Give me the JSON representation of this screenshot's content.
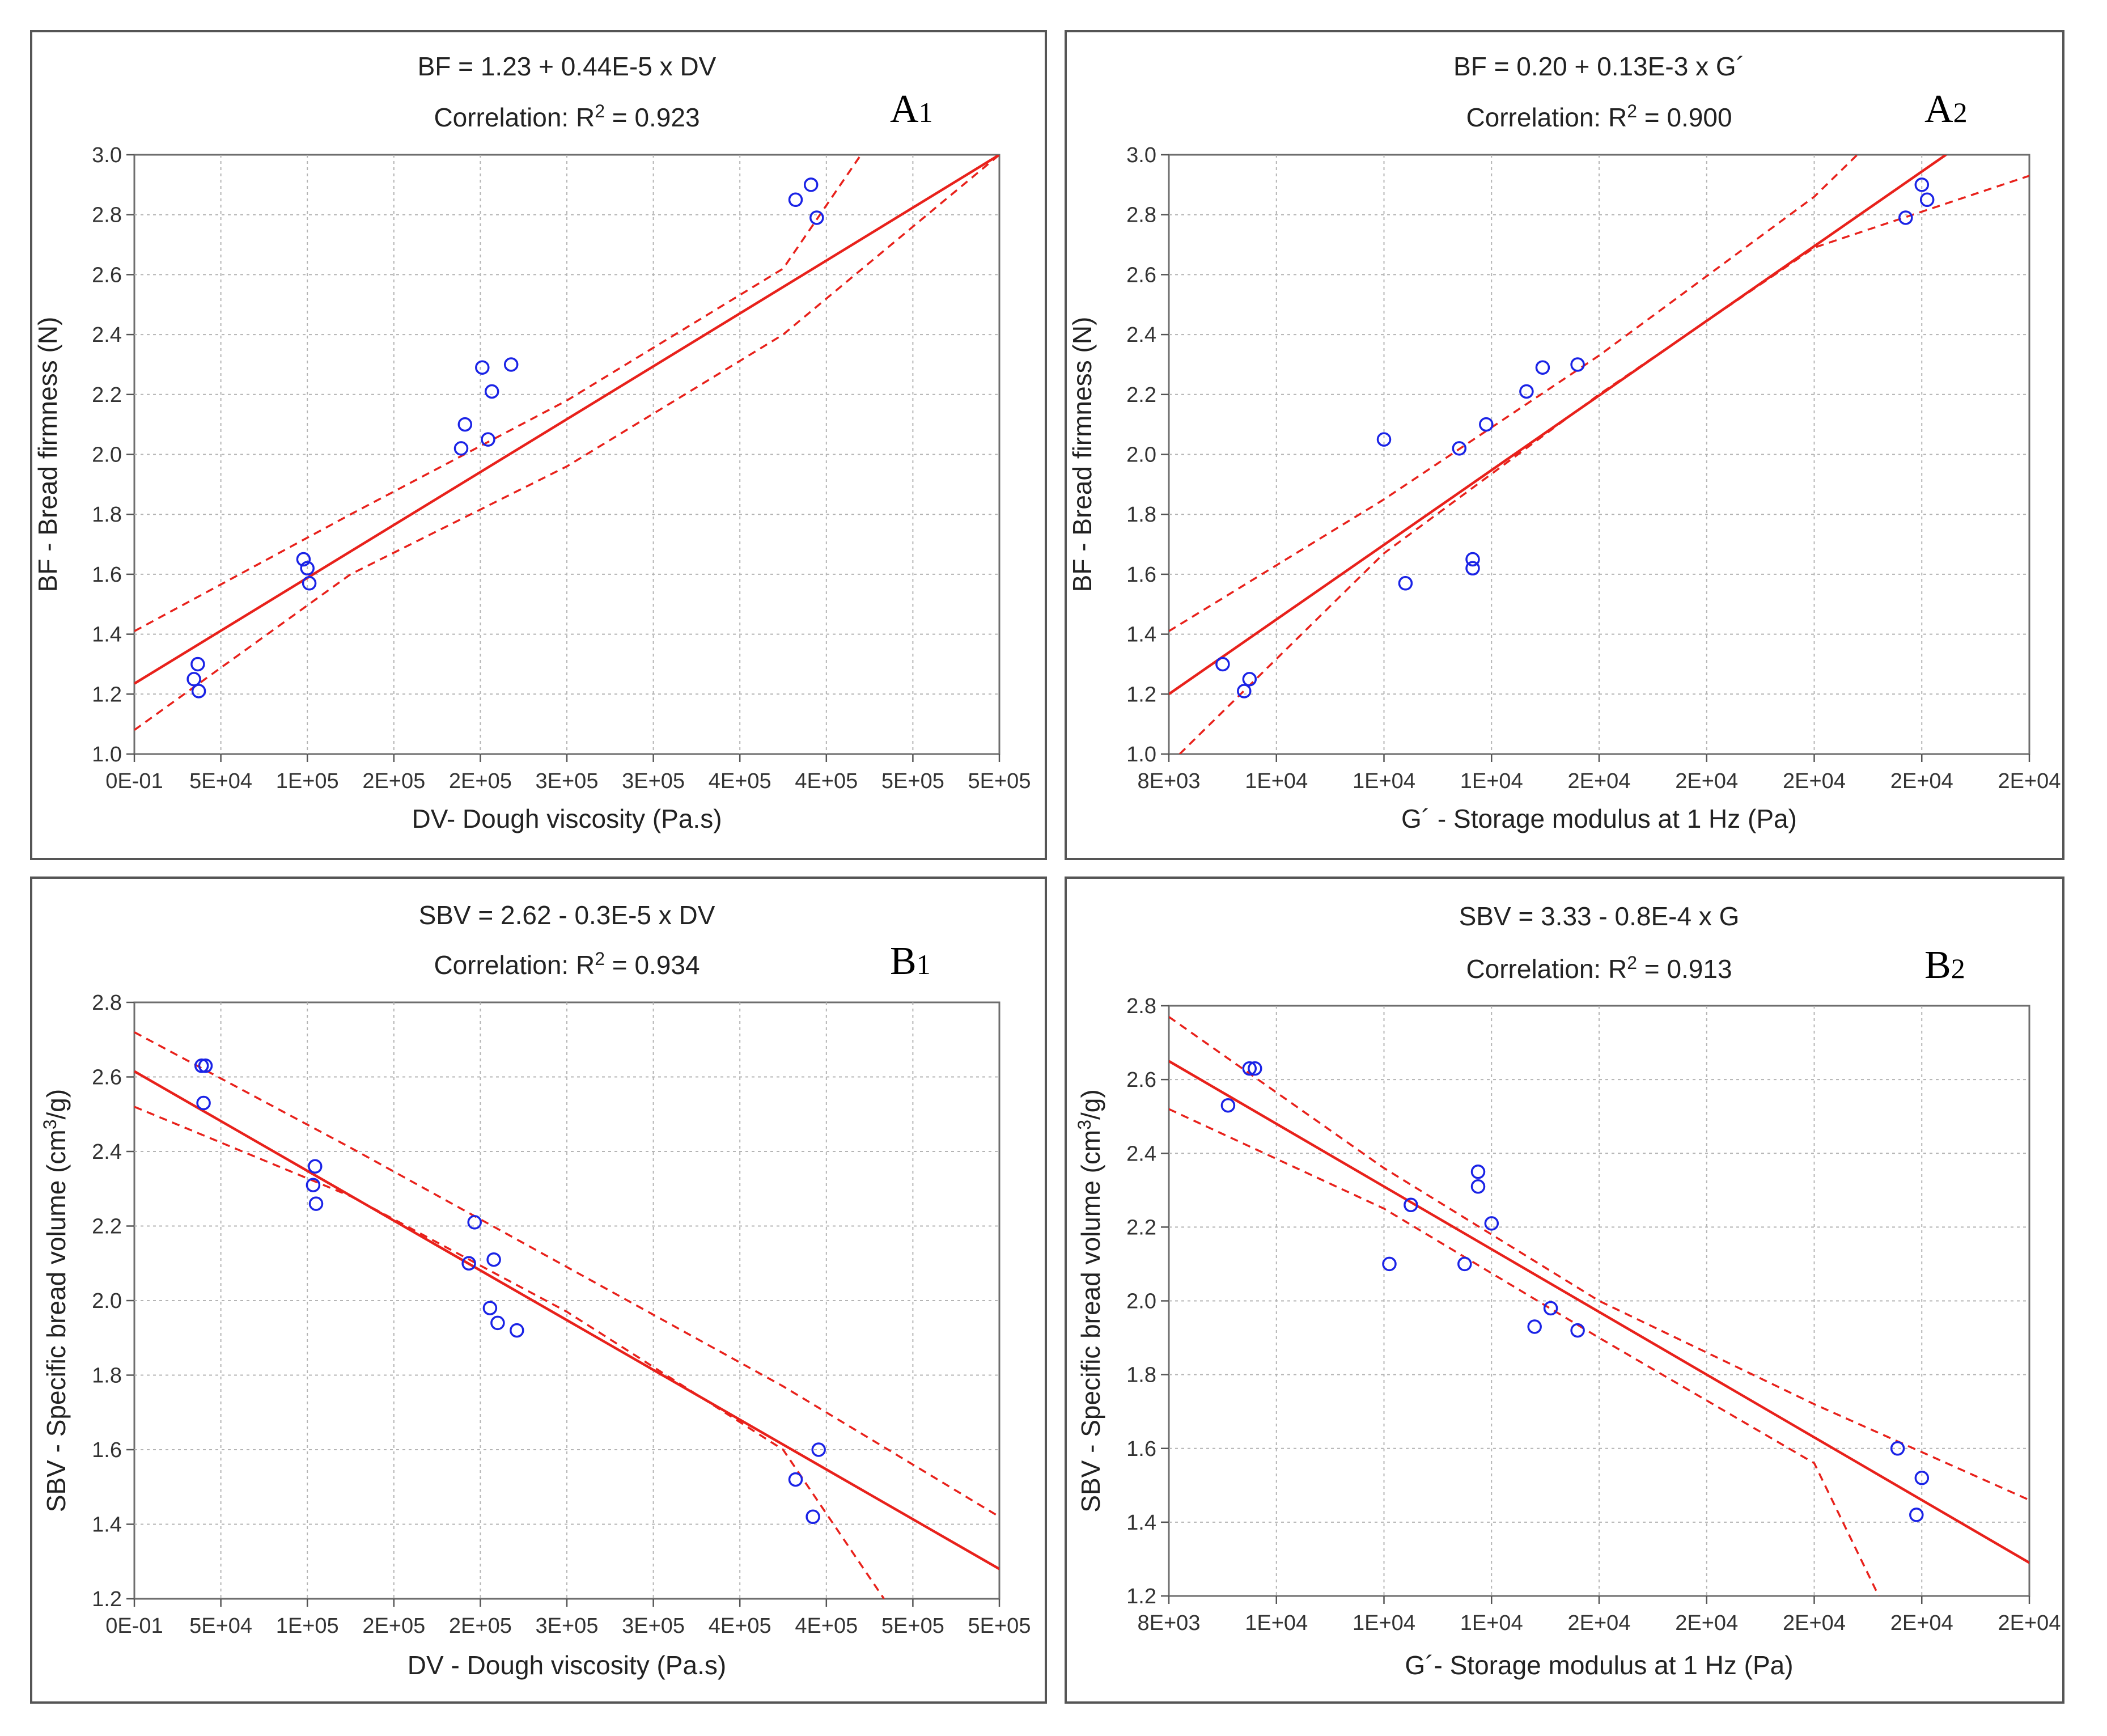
{
  "colors": {
    "fit": "#e8211b",
    "ci": "#e8211b",
    "points": "#1a23e6",
    "grid": "#b4b4b4",
    "frame": "#555555"
  },
  "chart_data": [
    {
      "id": "A1",
      "type": "scatter",
      "tag": "A1",
      "tag_main": "A",
      "tag_sub": "1",
      "title": "BF = 1.23 + 0.44E-5 x DV",
      "correlation": {
        "prefix": "Correlation: R",
        "sup": "2",
        "suffix": " = 0.923"
      },
      "xlabel": "DV- Dough viscosity (Pa.s)",
      "ylabel": {
        "text": "BF - Bread firmness (N)"
      },
      "xlim": [
        0,
        450000
      ],
      "ylim": [
        1.0,
        3.0
      ],
      "x_ticks": [
        0,
        45000,
        90000,
        135000,
        180000,
        225000,
        270000,
        315000,
        360000,
        405000,
        450000
      ],
      "x_tick_labels": [
        "0E-01",
        "5E+04",
        "1E+05",
        "2E+05",
        "2E+05",
        "3E+05",
        "3E+05",
        "4E+05",
        "4E+05",
        "5E+05",
        "5E+05"
      ],
      "y_ticks": [
        1.0,
        1.2,
        1.4,
        1.6,
        1.8,
        2.0,
        2.2,
        2.4,
        2.6,
        2.8,
        3.0
      ],
      "y_tick_labels": [
        "1.0",
        "1.2",
        "1.4",
        "1.6",
        "1.8",
        "2.0",
        "2.2",
        "2.4",
        "2.6",
        "2.8",
        "3.0"
      ],
      "fit_line": [
        [
          0,
          1.235
        ],
        [
          450000,
          3.0
        ]
      ],
      "ci_upper": [
        [
          0,
          1.41
        ],
        [
          112500,
          1.8
        ],
        [
          225000,
          2.18
        ],
        [
          337500,
          2.62
        ],
        [
          378000,
          3.0
        ]
      ],
      "ci_lower": [
        [
          0,
          1.08
        ],
        [
          112500,
          1.6
        ],
        [
          225000,
          1.96
        ],
        [
          337500,
          2.4
        ],
        [
          450000,
          3.0
        ]
      ],
      "points": [
        [
          33000,
          1.3
        ],
        [
          31000,
          1.25
        ],
        [
          33500,
          1.21
        ],
        [
          88000,
          1.65
        ],
        [
          90000,
          1.62
        ],
        [
          91000,
          1.57
        ],
        [
          170000,
          2.02
        ],
        [
          172000,
          2.1
        ],
        [
          181000,
          2.29
        ],
        [
          184000,
          2.05
        ],
        [
          186000,
          2.21
        ],
        [
          196000,
          2.3
        ],
        [
          344000,
          2.85
        ],
        [
          352000,
          2.9
        ],
        [
          355000,
          2.79
        ]
      ]
    },
    {
      "id": "A2",
      "type": "scatter",
      "tag": "A2",
      "tag_main": "A",
      "tag_sub": "2",
      "title": "BF  = 0.20 + 0.13E-3 x G´",
      "correlation": {
        "prefix": "Correlation: R",
        "sup": "2",
        "suffix": " = 0.900"
      },
      "xlabel": "G´ - Storage modulus at 1 Hz (Pa)",
      "ylabel": {
        "text": "BF - Bread firmness (N)"
      },
      "xlim": [
        8000,
        24000
      ],
      "ylim": [
        1.0,
        3.0
      ],
      "x_ticks": [
        8000,
        10000,
        12000,
        14000,
        16000,
        18000,
        20000,
        22000,
        24000
      ],
      "x_tick_labels": [
        "8E+03",
        "1E+04",
        "1E+04",
        "1E+04",
        "2E+04",
        "2E+04",
        "2E+04",
        "2E+04",
        "2E+04"
      ],
      "y_ticks": [
        1.0,
        1.2,
        1.4,
        1.6,
        1.8,
        2.0,
        2.2,
        2.4,
        2.6,
        2.8,
        3.0
      ],
      "y_tick_labels": [
        "1.0",
        "1.2",
        "1.4",
        "1.6",
        "1.8",
        "2.0",
        "2.2",
        "2.4",
        "2.6",
        "2.8",
        "3.0"
      ],
      "fit_line": [
        [
          8000,
          1.2
        ],
        [
          22450,
          3.0
        ]
      ],
      "ci_upper": [
        [
          8000,
          1.41
        ],
        [
          12000,
          1.85
        ],
        [
          16000,
          2.33
        ],
        [
          20000,
          2.86
        ],
        [
          20800,
          3.0
        ]
      ],
      "ci_lower": [
        [
          8200,
          1.0
        ],
        [
          12000,
          1.67
        ],
        [
          16000,
          2.2
        ],
        [
          20000,
          2.69
        ],
        [
          24000,
          2.93
        ]
      ],
      "points": [
        [
          9000,
          1.3
        ],
        [
          9400,
          1.21
        ],
        [
          9500,
          1.25
        ],
        [
          12000,
          2.05
        ],
        [
          12400,
          1.57
        ],
        [
          13400,
          2.02
        ],
        [
          13650,
          1.65
        ],
        [
          13650,
          1.62
        ],
        [
          13900,
          2.1
        ],
        [
          14650,
          2.21
        ],
        [
          14950,
          2.29
        ],
        [
          15600,
          2.3
        ],
        [
          21700,
          2.79
        ],
        [
          22000,
          2.9
        ],
        [
          22100,
          2.85
        ]
      ]
    },
    {
      "id": "B1",
      "type": "scatter",
      "tag": "B1",
      "tag_main": "B",
      "tag_sub": "1",
      "title": "SBV = 2.62 - 0.3E-5 x DV",
      "correlation": {
        "prefix": "Correlation: R",
        "sup": "2",
        "suffix": " = 0.934"
      },
      "xlabel": "DV - Dough viscosity (Pa.s)",
      "ylabel": {
        "prefix": "SBV - Specific bread volume (cm",
        "sup": "3",
        "suffix": "/g)"
      },
      "xlim": [
        0,
        450000
      ],
      "ylim": [
        1.2,
        2.8
      ],
      "x_ticks": [
        0,
        45000,
        90000,
        135000,
        180000,
        225000,
        270000,
        315000,
        360000,
        405000,
        450000
      ],
      "x_tick_labels": [
        "0E-01",
        "5E+04",
        "1E+05",
        "2E+05",
        "2E+05",
        "3E+05",
        "3E+05",
        "4E+05",
        "4E+05",
        "5E+05",
        "5E+05"
      ],
      "y_ticks": [
        1.2,
        1.4,
        1.6,
        1.8,
        2.0,
        2.2,
        2.4,
        2.6,
        2.8
      ],
      "y_tick_labels": [
        "1.2",
        "1.4",
        "1.6",
        "1.8",
        "2.0",
        "2.2",
        "2.4",
        "2.6",
        "2.8"
      ],
      "fit_line": [
        [
          0,
          2.615
        ],
        [
          450000,
          1.28
        ]
      ],
      "ci_upper": [
        [
          0,
          2.72
        ],
        [
          112500,
          2.41
        ],
        [
          225000,
          2.09
        ],
        [
          337500,
          1.77
        ],
        [
          450000,
          1.42
        ]
      ],
      "ci_lower": [
        [
          0,
          2.52
        ],
        [
          112500,
          2.28
        ],
        [
          225000,
          1.97
        ],
        [
          337500,
          1.6
        ],
        [
          390000,
          1.2
        ]
      ],
      "points": [
        [
          35000,
          2.63
        ],
        [
          37000,
          2.63
        ],
        [
          36000,
          2.53
        ],
        [
          94000,
          2.36
        ],
        [
          93000,
          2.31
        ],
        [
          94500,
          2.26
        ],
        [
          174000,
          2.1
        ],
        [
          177000,
          2.21
        ],
        [
          185000,
          1.98
        ],
        [
          187000,
          2.11
        ],
        [
          189000,
          1.94
        ],
        [
          199000,
          1.92
        ],
        [
          344000,
          1.52
        ],
        [
          353000,
          1.42
        ],
        [
          356000,
          1.6
        ]
      ]
    },
    {
      "id": "B2",
      "type": "scatter",
      "tag": "B2",
      "tag_main": "B",
      "tag_sub": "2",
      "title": "SBV  = 3.33 - 0.8E-4 x G",
      "correlation": {
        "prefix": "Correlation: R",
        "sup": "2",
        "suffix": " = 0.913"
      },
      "xlabel": "G´- Storage modulus at 1 Hz (Pa)",
      "ylabel": {
        "prefix": "SBV - Specific bread volume (cm",
        "sup": "3",
        "suffix": "/g)"
      },
      "xlim": [
        8000,
        24000
      ],
      "ylim": [
        1.2,
        2.8
      ],
      "x_ticks": [
        8000,
        10000,
        12000,
        14000,
        16000,
        18000,
        20000,
        22000,
        24000
      ],
      "x_tick_labels": [
        "8E+03",
        "1E+04",
        "1E+04",
        "1E+04",
        "2E+04",
        "2E+04",
        "2E+04",
        "2E+04",
        "2E+04"
      ],
      "y_ticks": [
        1.2,
        1.4,
        1.6,
        1.8,
        2.0,
        2.2,
        2.4,
        2.6,
        2.8
      ],
      "y_tick_labels": [
        "1.2",
        "1.4",
        "1.6",
        "1.8",
        "2.0",
        "2.2",
        "2.4",
        "2.6",
        "2.8"
      ],
      "fit_line": [
        [
          8000,
          2.65
        ],
        [
          24000,
          1.29
        ]
      ],
      "ci_upper": [
        [
          8000,
          2.77
        ],
        [
          12000,
          2.36
        ],
        [
          16000,
          2.0
        ],
        [
          20000,
          1.72
        ],
        [
          24000,
          1.46
        ]
      ],
      "ci_lower": [
        [
          8000,
          2.52
        ],
        [
          12000,
          2.25
        ],
        [
          16000,
          1.9
        ],
        [
          20000,
          1.56
        ],
        [
          21200,
          1.2
        ]
      ],
      "points": [
        [
          9100,
          2.53
        ],
        [
          9500,
          2.63
        ],
        [
          9600,
          2.63
        ],
        [
          12100,
          2.1
        ],
        [
          12500,
          2.26
        ],
        [
          13500,
          2.1
        ],
        [
          13750,
          2.35
        ],
        [
          13750,
          2.31
        ],
        [
          14000,
          2.21
        ],
        [
          14800,
          1.93
        ],
        [
          15100,
          1.98
        ],
        [
          15600,
          1.92
        ],
        [
          21550,
          1.6
        ],
        [
          21900,
          1.42
        ],
        [
          22000,
          1.52
        ]
      ]
    }
  ]
}
